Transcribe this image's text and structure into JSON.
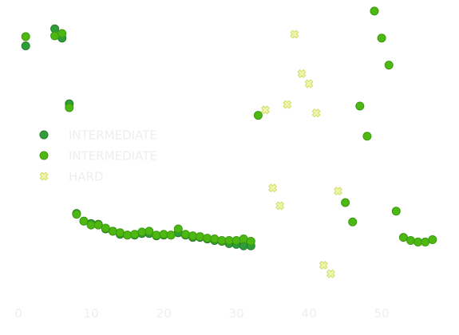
{
  "chart_data": {
    "type": "scatter",
    "title": "",
    "xlabel": "",
    "ylabel": "",
    "xlim": [
      -1,
      59
    ],
    "ylim": [
      -1.5,
      36.5
    ],
    "x_ticks": [
      0,
      10,
      20,
      30,
      40,
      50
    ],
    "x_tick_labels": [
      "0",
      "10",
      "20",
      "30",
      "40",
      "50"
    ],
    "show_y_axis": false,
    "grid": false,
    "legend": "center-left",
    "series": [
      {
        "name": "INTERMEDIATE",
        "marker": "circle",
        "color": "#2e9e3a",
        "edge": "#2a7a2a",
        "points": [
          [
            1,
            31.6
          ],
          [
            5,
            33.8
          ],
          [
            6,
            32.6
          ],
          [
            7,
            24.1
          ],
          [
            8,
            9.9
          ],
          [
            9,
            8.9
          ],
          [
            10,
            8.6
          ],
          [
            11,
            8.5
          ],
          [
            12,
            7.9
          ],
          [
            13,
            7.6
          ],
          [
            14,
            7.2
          ],
          [
            15,
            7.1
          ],
          [
            16,
            7.1
          ],
          [
            17,
            7.3
          ],
          [
            18,
            7.3
          ],
          [
            19,
            7.0
          ],
          [
            20,
            7.1
          ],
          [
            21,
            7.1
          ],
          [
            22,
            7.4
          ],
          [
            23,
            7.1
          ],
          [
            24,
            6.8
          ],
          [
            25,
            6.8
          ],
          [
            26,
            6.6
          ],
          [
            27,
            6.4
          ],
          [
            28,
            6.3
          ],
          [
            29,
            6.0
          ],
          [
            30,
            5.9
          ],
          [
            31,
            5.7
          ],
          [
            32,
            5.7
          ]
        ]
      },
      {
        "name": "INTERMEDIATE",
        "marker": "circle",
        "color": "#4db812",
        "edge": "#3a9a10",
        "points": [
          [
            1,
            32.8
          ],
          [
            5,
            32.9
          ],
          [
            6,
            33.2
          ],
          [
            7,
            23.6
          ],
          [
            8,
            9.8
          ],
          [
            9,
            8.9
          ],
          [
            10,
            8.4
          ],
          [
            11,
            8.4
          ],
          [
            12,
            8.0
          ],
          [
            13,
            7.6
          ],
          [
            14,
            7.4
          ],
          [
            15,
            7.1
          ],
          [
            16,
            7.2
          ],
          [
            17,
            7.5
          ],
          [
            18,
            7.6
          ],
          [
            19,
            7.1
          ],
          [
            20,
            7.2
          ],
          [
            21,
            7.1
          ],
          [
            22,
            7.9
          ],
          [
            23,
            7.2
          ],
          [
            24,
            7.0
          ],
          [
            25,
            6.9
          ],
          [
            26,
            6.7
          ],
          [
            27,
            6.6
          ],
          [
            28,
            6.4
          ],
          [
            29,
            6.4
          ],
          [
            30,
            6.4
          ],
          [
            31,
            6.6
          ],
          [
            32,
            6.3
          ],
          [
            33,
            22.6
          ],
          [
            45,
            11.3
          ],
          [
            46,
            8.8
          ],
          [
            47,
            23.8
          ],
          [
            48,
            19.9
          ],
          [
            49,
            36.1
          ],
          [
            50,
            32.6
          ],
          [
            51,
            29.1
          ],
          [
            52,
            10.2
          ],
          [
            53,
            6.8
          ],
          [
            54,
            6.4
          ],
          [
            55,
            6.2
          ],
          [
            56,
            6.2
          ],
          [
            57,
            6.5
          ]
        ]
      },
      {
        "name": "HARD",
        "marker": "x",
        "color": "#eef5a8",
        "edge": "#c9d957",
        "points": [
          [
            34,
            23.3
          ],
          [
            35,
            13.2
          ],
          [
            36,
            10.9
          ],
          [
            37,
            24.0
          ],
          [
            38,
            33.1
          ],
          [
            39,
            28.0
          ],
          [
            40,
            26.7
          ],
          [
            41,
            22.9
          ],
          [
            42,
            3.2
          ],
          [
            43,
            2.1
          ],
          [
            44,
            12.8
          ]
        ]
      }
    ]
  }
}
